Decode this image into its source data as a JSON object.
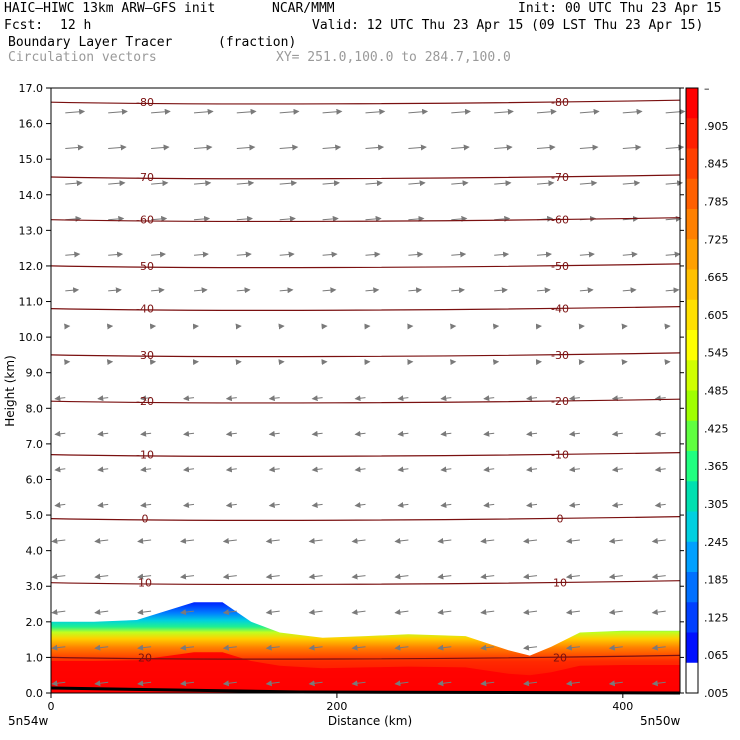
{
  "header": {
    "model_title": "HAIC–HIWC 13km ARW–GFS init",
    "org": "NCAR/MMM",
    "init": "Init: 00 UTC Thu 23 Apr 15",
    "fcst_label": "Fcst:",
    "fcst_value": "12 h",
    "valid": "Valid: 12 UTC Thu 23 Apr 15 (09 LST Thu 23 Apr 15)",
    "field_name": "Boundary Layer Tracer",
    "field_units": "(fraction)",
    "overlay_name": "Circulation vectors",
    "cross_section": "XY= 251.0,100.0 to 284.7,100.0"
  },
  "chart_data": {
    "type": "heatmap",
    "ylabel": "Height (km)",
    "xlabel": "Distance (km)",
    "xlim": [
      0,
      440
    ],
    "ylim": [
      0,
      17
    ],
    "x_ticks": [
      "0",
      "200",
      "400"
    ],
    "x_tick_values": [
      0,
      200,
      400
    ],
    "y_ticks": [
      "0.0",
      "1.0",
      "2.0",
      "3.0",
      "4.0",
      "5.0",
      "6.0",
      "7.0",
      "8.0",
      "9.0",
      "10.0",
      "11.0",
      "12.0",
      "13.0",
      "14.0",
      "15.0",
      "16.0",
      "17.0"
    ],
    "left_endpoint": "5n54w",
    "right_endpoint": "5n50w",
    "colorbar": {
      "labels": [
        "–",
        ".905",
        ".845",
        ".785",
        ".725",
        ".665",
        ".605",
        ".545",
        ".485",
        ".425",
        ".365",
        ".305",
        ".245",
        ".185",
        ".125",
        ".065",
        ".005"
      ],
      "colors": [
        "#ff0000",
        "#ff2000",
        "#ff4000",
        "#ff6000",
        "#ff8000",
        "#ffa000",
        "#ffc000",
        "#ffe000",
        "#ffff00",
        "#d0ff00",
        "#a0ff00",
        "#60ff40",
        "#20ff80",
        "#00e0b0",
        "#00d0e0",
        "#00a0ff",
        "#0070ff",
        "#0040ff",
        "#0010ff",
        "#ffffff"
      ]
    },
    "tracer_top_km": [
      {
        "x": 0,
        "top": 2.0
      },
      {
        "x": 30,
        "top": 2.0
      },
      {
        "x": 60,
        "top": 2.05
      },
      {
        "x": 80,
        "top": 2.3
      },
      {
        "x": 100,
        "top": 2.55
      },
      {
        "x": 120,
        "top": 2.55
      },
      {
        "x": 140,
        "top": 2.0
      },
      {
        "x": 160,
        "top": 1.7
      },
      {
        "x": 190,
        "top": 1.55
      },
      {
        "x": 220,
        "top": 1.6
      },
      {
        "x": 250,
        "top": 1.65
      },
      {
        "x": 290,
        "top": 1.6
      },
      {
        "x": 320,
        "top": 1.2
      },
      {
        "x": 335,
        "top": 1.05
      },
      {
        "x": 350,
        "top": 1.3
      },
      {
        "x": 370,
        "top": 1.7
      },
      {
        "x": 400,
        "top": 1.75
      },
      {
        "x": 440,
        "top": 1.75
      }
    ],
    "temperature_contours_C": [
      {
        "value": "-80",
        "height_km": 16.6
      },
      {
        "value": "-70",
        "height_km": 14.5
      },
      {
        "value": "-60",
        "height_km": 13.3
      },
      {
        "value": "-50",
        "height_km": 12.0
      },
      {
        "value": "-40",
        "height_km": 10.8
      },
      {
        "value": "-30",
        "height_km": 9.5
      },
      {
        "value": "-20",
        "height_km": 8.2
      },
      {
        "value": "-10",
        "height_km": 6.7
      },
      {
        "value": "0",
        "height_km": 4.9
      },
      {
        "value": "10",
        "height_km": 3.1
      },
      {
        "value": "20",
        "height_km": 1.0
      }
    ]
  }
}
